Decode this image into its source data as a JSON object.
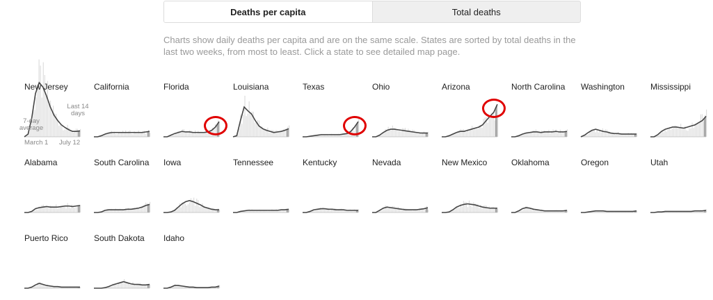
{
  "toggle": {
    "per_capita_label": "Deaths per capita",
    "total_label": "Total deaths"
  },
  "description": "Charts show daily deaths per capita and are on the same scale. States are sorted by total deaths in the last two weeks, from most to least. Click a state to see detailed map page.",
  "annotations": {
    "avg_label": "7-day average",
    "last14_label": "Last 14 days",
    "start_date": "March 1",
    "end_date": "July 12"
  },
  "colors": {
    "line": "#444444",
    "bars": "#dddddd",
    "last14_shade": "#aaaaaa",
    "baseline": "#bbbbbb",
    "highlight": "#e00000"
  },
  "chart_data": {
    "type": "area",
    "x_range": [
      "March 1",
      "July 12"
    ],
    "y_scale": "shared",
    "y_max": 1.0,
    "series": [
      {
        "name": "New Jersey",
        "values": [
          0,
          0.05,
          0.35,
          0.8,
          1.0,
          0.92,
          0.75,
          0.55,
          0.4,
          0.3,
          0.22,
          0.17,
          0.13,
          0.1,
          0.1,
          0.11
        ],
        "highlighted": false
      },
      {
        "name": "California",
        "values": [
          0,
          0,
          0.02,
          0.05,
          0.07,
          0.08,
          0.08,
          0.08,
          0.08,
          0.08,
          0.08,
          0.08,
          0.08,
          0.08,
          0.09,
          0.1
        ],
        "highlighted": false
      },
      {
        "name": "Florida",
        "values": [
          0,
          0,
          0.03,
          0.06,
          0.08,
          0.1,
          0.09,
          0.09,
          0.08,
          0.08,
          0.08,
          0.08,
          0.09,
          0.12,
          0.18,
          0.28
        ],
        "highlighted": true
      },
      {
        "name": "Louisiana",
        "values": [
          0,
          0.02,
          0.3,
          0.55,
          0.48,
          0.42,
          0.3,
          0.2,
          0.15,
          0.12,
          0.1,
          0.08,
          0.09,
          0.1,
          0.12,
          0.15
        ],
        "highlighted": false
      },
      {
        "name": "Texas",
        "values": [
          0,
          0,
          0.01,
          0.02,
          0.03,
          0.04,
          0.04,
          0.04,
          0.04,
          0.04,
          0.04,
          0.05,
          0.06,
          0.1,
          0.18,
          0.28
        ],
        "highlighted": true
      },
      {
        "name": "Ohio",
        "values": [
          0,
          0,
          0.03,
          0.08,
          0.12,
          0.14,
          0.14,
          0.13,
          0.12,
          0.11,
          0.1,
          0.09,
          0.08,
          0.07,
          0.07,
          0.07
        ],
        "highlighted": false
      },
      {
        "name": "Arizona",
        "values": [
          0,
          0,
          0.02,
          0.05,
          0.08,
          0.1,
          0.1,
          0.12,
          0.14,
          0.16,
          0.18,
          0.22,
          0.3,
          0.38,
          0.45,
          0.6
        ],
        "highlighted": true
      },
      {
        "name": "North Carolina",
        "values": [
          0,
          0,
          0.02,
          0.05,
          0.07,
          0.08,
          0.09,
          0.09,
          0.08,
          0.09,
          0.09,
          0.09,
          0.1,
          0.09,
          0.09,
          0.1
        ],
        "highlighted": false
      },
      {
        "name": "Washington",
        "values": [
          0,
          0.03,
          0.08,
          0.12,
          0.14,
          0.12,
          0.1,
          0.09,
          0.07,
          0.06,
          0.06,
          0.05,
          0.05,
          0.05,
          0.05,
          0.05
        ],
        "highlighted": false
      },
      {
        "name": "Mississippi",
        "values": [
          0,
          0,
          0.04,
          0.1,
          0.14,
          0.16,
          0.18,
          0.18,
          0.17,
          0.16,
          0.18,
          0.2,
          0.22,
          0.26,
          0.3,
          0.38
        ],
        "highlighted": false
      },
      {
        "name": "Alabama",
        "values": [
          0,
          0,
          0.02,
          0.07,
          0.09,
          0.1,
          0.11,
          0.1,
          0.1,
          0.1,
          0.11,
          0.12,
          0.12,
          0.11,
          0.12,
          0.13
        ],
        "highlighted": false
      },
      {
        "name": "South Carolina",
        "values": [
          0,
          0,
          0.01,
          0.04,
          0.05,
          0.05,
          0.05,
          0.05,
          0.05,
          0.06,
          0.06,
          0.07,
          0.08,
          0.1,
          0.13,
          0.15
        ],
        "highlighted": false
      },
      {
        "name": "Iowa",
        "values": [
          0,
          0,
          0.01,
          0.04,
          0.1,
          0.16,
          0.2,
          0.22,
          0.2,
          0.17,
          0.14,
          0.1,
          0.08,
          0.06,
          0.05,
          0.05
        ],
        "highlighted": false
      },
      {
        "name": "Tennessee",
        "values": [
          0,
          0,
          0.02,
          0.03,
          0.04,
          0.04,
          0.04,
          0.04,
          0.04,
          0.04,
          0.04,
          0.04,
          0.04,
          0.05,
          0.05,
          0.06
        ],
        "highlighted": false
      },
      {
        "name": "Kentucky",
        "values": [
          0,
          0,
          0.02,
          0.05,
          0.06,
          0.07,
          0.07,
          0.06,
          0.06,
          0.05,
          0.05,
          0.05,
          0.04,
          0.04,
          0.04,
          0.04
        ],
        "highlighted": false
      },
      {
        "name": "Nevada",
        "values": [
          0,
          0,
          0.04,
          0.08,
          0.1,
          0.09,
          0.08,
          0.07,
          0.06,
          0.05,
          0.05,
          0.05,
          0.05,
          0.06,
          0.07,
          0.09
        ],
        "highlighted": false
      },
      {
        "name": "New Mexico",
        "values": [
          0,
          0,
          0.01,
          0.05,
          0.1,
          0.13,
          0.15,
          0.16,
          0.15,
          0.14,
          0.12,
          0.1,
          0.09,
          0.08,
          0.08,
          0.08
        ],
        "highlighted": false
      },
      {
        "name": "Oklahoma",
        "values": [
          0,
          0,
          0.03,
          0.07,
          0.09,
          0.08,
          0.06,
          0.05,
          0.04,
          0.03,
          0.03,
          0.03,
          0.03,
          0.03,
          0.03,
          0.04
        ],
        "highlighted": false
      },
      {
        "name": "Oregon",
        "values": [
          0,
          0,
          0.01,
          0.02,
          0.03,
          0.03,
          0.03,
          0.02,
          0.02,
          0.02,
          0.02,
          0.02,
          0.02,
          0.02,
          0.02,
          0.03
        ],
        "highlighted": false
      },
      {
        "name": "Utah",
        "values": [
          0,
          0,
          0.01,
          0.01,
          0.02,
          0.02,
          0.02,
          0.02,
          0.02,
          0.02,
          0.02,
          0.02,
          0.03,
          0.03,
          0.03,
          0.04
        ],
        "highlighted": false
      },
      {
        "name": "Puerto Rico",
        "values": [
          0,
          0,
          0.02,
          0.06,
          0.09,
          0.07,
          0.05,
          0.04,
          0.03,
          0.03,
          0.02,
          0.02,
          0.02,
          0.02,
          0.02,
          0.02
        ],
        "highlighted": false
      },
      {
        "name": "South Dakota",
        "values": [
          0,
          0,
          0,
          0.01,
          0.03,
          0.06,
          0.08,
          0.1,
          0.12,
          0.1,
          0.08,
          0.07,
          0.07,
          0.06,
          0.06,
          0.07
        ],
        "highlighted": false
      },
      {
        "name": "Idaho",
        "values": [
          0,
          0,
          0.02,
          0.05,
          0.05,
          0.04,
          0.03,
          0.02,
          0.02,
          0.01,
          0.01,
          0.01,
          0.01,
          0.02,
          0.02,
          0.04
        ],
        "highlighted": false
      }
    ]
  }
}
